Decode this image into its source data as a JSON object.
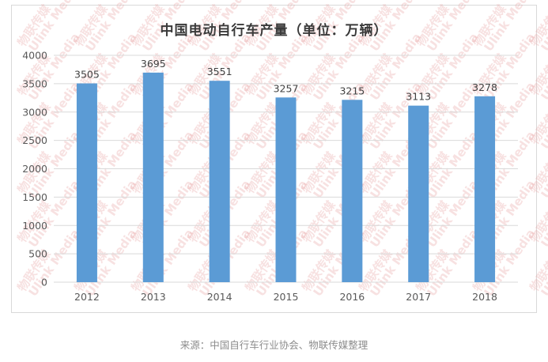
{
  "chart_data": {
    "type": "bar",
    "title": "中国电动自行车产量（单位：万辆）",
    "categories": [
      "2012",
      "2013",
      "2014",
      "2015",
      "2016",
      "2017",
      "2018"
    ],
    "values": [
      3505,
      3695,
      3551,
      3257,
      3215,
      3113,
      3278
    ],
    "ylim": [
      0,
      4000
    ],
    "yticks": [
      0,
      500,
      1000,
      1500,
      2000,
      2500,
      3000,
      3500,
      4000
    ],
    "xlabel": "",
    "ylabel": "",
    "grid": true,
    "bar_color": "#5b9bd5",
    "grid_color": "#d9d9d9"
  },
  "watermark": {
    "text": "物联传媒",
    "subtext": "Ulink Media"
  },
  "source": "来源：中国自行车行业协会、物联传媒整理"
}
